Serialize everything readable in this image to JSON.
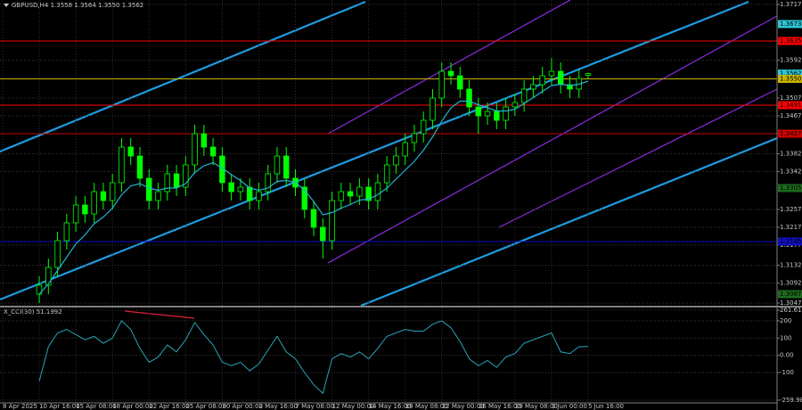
{
  "chart_data": [
    {
      "type": "candlestick",
      "title": "GBPUSD,H4 1.3558 1.3564 1.3550 1.3562",
      "color": "#00ff00",
      "grid": true,
      "categories": [
        "8 Apr 2025",
        null,
        null,
        null,
        "10 Apr 16:00",
        null,
        null,
        null,
        "15 Apr 08:00",
        null,
        null,
        null,
        "18 Apr 00:00",
        null,
        null,
        null,
        "22 Apr 16:00",
        null,
        null,
        null,
        "25 Apr 08:00",
        null,
        null,
        null,
        "30 Apr 00:00",
        null,
        null,
        null,
        "2 May 16:00",
        null,
        null,
        null,
        "7 May 08:00",
        null,
        null,
        null,
        "12 May 00:00",
        null,
        null,
        null,
        "14 May 16:00",
        null,
        null,
        null,
        "19 May 08:00",
        null,
        null,
        null,
        "22 May 00:00",
        null,
        null,
        null,
        "26 May 16:00",
        null,
        null,
        null,
        "29 May 08:00",
        null,
        null,
        null,
        "3 Jun 00:00",
        null,
        null,
        null,
        "5 Jun 16:00"
      ],
      "open": [
        null,
        null,
        null,
        null,
        1.3067,
        1.3087,
        1.3127,
        1.3187,
        1.3227,
        1.3267,
        1.3247,
        1.3297,
        1.3277,
        1.3317,
        1.3397,
        1.3377,
        1.3327,
        1.3277,
        1.3297,
        1.3337,
        1.3307,
        1.3357,
        1.3427,
        1.3397,
        1.3377,
        1.3317,
        1.3297,
        1.3307,
        1.3277,
        1.3297,
        1.3337,
        1.3377,
        1.3327,
        1.3307,
        1.3257,
        1.3217,
        1.3187,
        1.3277,
        1.3297,
        1.3287,
        1.3307,
        1.3277,
        1.3317,
        1.3357,
        1.3377,
        1.3407,
        1.3427,
        1.3457,
        1.3507,
        1.3567,
        1.3557,
        1.3527,
        1.3487,
        1.3467,
        1.3477,
        1.3457,
        1.3487,
        1.3497,
        1.3527,
        1.3537,
        1.3557,
        1.3567,
        1.3537,
        1.3527,
        1.3558
      ],
      "high": [
        null,
        null,
        null,
        null,
        1.3107,
        1.3147,
        1.3207,
        1.3247,
        1.3287,
        1.3287,
        1.3317,
        1.3317,
        1.3337,
        1.3417,
        1.3417,
        1.3397,
        1.3347,
        1.3317,
        1.3357,
        1.3357,
        1.3377,
        1.3447,
        1.3447,
        1.3417,
        1.3397,
        1.3337,
        1.3327,
        1.3327,
        1.3317,
        1.3357,
        1.3397,
        1.3397,
        1.3347,
        1.3327,
        1.3277,
        1.3237,
        1.3297,
        1.3317,
        1.3317,
        1.3327,
        1.3327,
        1.3337,
        1.3377,
        1.3397,
        1.3427,
        1.3447,
        1.3477,
        1.3527,
        1.3587,
        1.3587,
        1.3577,
        1.3547,
        1.3507,
        1.3497,
        1.3497,
        1.3507,
        1.3517,
        1.3547,
        1.3557,
        1.3577,
        1.3597,
        1.3587,
        1.3557,
        1.3571,
        1.3564
      ],
      "low": [
        null,
        null,
        null,
        null,
        1.3047,
        1.3067,
        1.3107,
        1.3167,
        1.3207,
        1.3227,
        1.3227,
        1.3257,
        1.3257,
        1.3297,
        1.3357,
        1.3307,
        1.3257,
        1.3257,
        1.3277,
        1.3287,
        1.3287,
        1.3337,
        1.3377,
        1.3357,
        1.3297,
        1.3277,
        1.3277,
        1.3257,
        1.3257,
        1.3277,
        1.3317,
        1.3307,
        1.3287,
        1.3237,
        1.3197,
        1.3147,
        1.3167,
        1.3257,
        1.3267,
        1.3267,
        1.3257,
        1.3257,
        1.3297,
        1.3337,
        1.3357,
        1.3387,
        1.3407,
        1.3437,
        1.3487,
        1.3537,
        1.3507,
        1.3467,
        1.3427,
        1.3447,
        1.3437,
        1.3437,
        1.3467,
        1.3477,
        1.3507,
        1.3517,
        1.3537,
        1.3517,
        1.3507,
        1.3507,
        1.355
      ],
      "close": [
        null,
        null,
        null,
        null,
        1.3087,
        1.3127,
        1.3187,
        1.3227,
        1.3267,
        1.3247,
        1.3297,
        1.3277,
        1.3317,
        1.3397,
        1.3377,
        1.3327,
        1.3277,
        1.3297,
        1.3337,
        1.3307,
        1.3357,
        1.3427,
        1.3397,
        1.3377,
        1.3317,
        1.3297,
        1.3307,
        1.3277,
        1.3297,
        1.3337,
        1.3377,
        1.3327,
        1.3307,
        1.3257,
        1.3217,
        1.3187,
        1.3277,
        1.3297,
        1.3287,
        1.3307,
        1.3277,
        1.3317,
        1.3357,
        1.3377,
        1.3407,
        1.3427,
        1.3457,
        1.3507,
        1.3567,
        1.3557,
        1.3527,
        1.3487,
        1.3467,
        1.3477,
        1.3457,
        1.3487,
        1.3497,
        1.3527,
        1.3537,
        1.3557,
        1.3567,
        1.3537,
        1.3527,
        1.3551,
        1.3562
      ],
      "overlay": {
        "color": "#1fb5d0",
        "values": [
          null,
          null,
          null,
          null,
          1.3067,
          1.309,
          1.312,
          1.315,
          1.318,
          1.32,
          1.3225,
          1.324,
          1.326,
          1.329,
          1.331,
          1.3315,
          1.3305,
          1.33,
          1.3305,
          1.3305,
          1.3315,
          1.334,
          1.3355,
          1.3362,
          1.335,
          1.3335,
          1.3322,
          1.3305,
          1.33,
          1.3305,
          1.332,
          1.3322,
          1.3318,
          1.33,
          1.3275,
          1.3245,
          1.325,
          1.326,
          1.3268,
          1.3278,
          1.328,
          1.329,
          1.3305,
          1.3325,
          1.3345,
          1.3365,
          1.339,
          1.342,
          1.3455,
          1.3485,
          1.35,
          1.35,
          1.3492,
          1.3485,
          1.3478,
          1.3478,
          1.3482,
          1.3495,
          1.3508,
          1.3522,
          1.3535,
          1.3538,
          1.3535,
          1.3538,
          1.3545
        ]
      },
      "ylim": [
        1.3041,
        1.3727
      ],
      "yticks": [
        1.3717,
        1.3592,
        1.3507,
        1.3467,
        1.3382,
        1.3342,
        1.3257,
        1.3217,
        1.3177,
        1.3132,
        1.3092,
        1.3047
      ],
      "levels": [
        {
          "value": 1.3673,
          "label": "1.3673",
          "color": "#2ec4d6",
          "line": false
        },
        {
          "value": 1.3635,
          "label": "1.3635",
          "color": "#ff0000",
          "line": true
        },
        {
          "value": 1.3562,
          "label": "1.3562",
          "color": "#2ec4d6",
          "line": false
        },
        {
          "value": 1.355,
          "label": "1.3550",
          "color": "#c8b400",
          "line": true
        },
        {
          "value": 1.3491,
          "label": "1.3491",
          "color": "#ff0000",
          "line": true
        },
        {
          "value": 1.3427,
          "label": "1.3427",
          "color": "#cc0000",
          "line": true
        },
        {
          "value": 1.3305,
          "label": "1.3305",
          "color": "#1e6a1e",
          "line": false
        },
        {
          "value": 1.3185,
          "label": "1.3185",
          "color": "#1010c0",
          "line": true
        },
        {
          "value": 1.3067,
          "label": "1.3067",
          "color": "#1e6a1e",
          "line": false
        }
      ]
    },
    {
      "type": "line",
      "title": "X_CCI(30) 51.1992",
      "color": "#2aa3b8",
      "grid": true,
      "values": [
        null,
        null,
        null,
        null,
        -150,
        50,
        130,
        150,
        120,
        90,
        110,
        70,
        100,
        200,
        150,
        40,
        -40,
        -10,
        60,
        20,
        90,
        190,
        120,
        60,
        -40,
        -60,
        -40,
        -90,
        -50,
        30,
        110,
        20,
        -20,
        -100,
        -170,
        -220,
        -20,
        10,
        -10,
        20,
        -20,
        40,
        110,
        130,
        150,
        140,
        140,
        180,
        200,
        160,
        80,
        -20,
        -60,
        -30,
        -70,
        -10,
        10,
        70,
        90,
        110,
        130,
        20,
        10,
        50,
        51.1992
      ],
      "ylim": [
        -259.98,
        261.6166
      ],
      "yticks": [
        261.6166,
        200,
        100,
        {
          "value": 0,
          "label": "0.00"
        },
        -100,
        {
          "value": -259.98,
          "label": "-259.9800"
        }
      ]
    }
  ]
}
